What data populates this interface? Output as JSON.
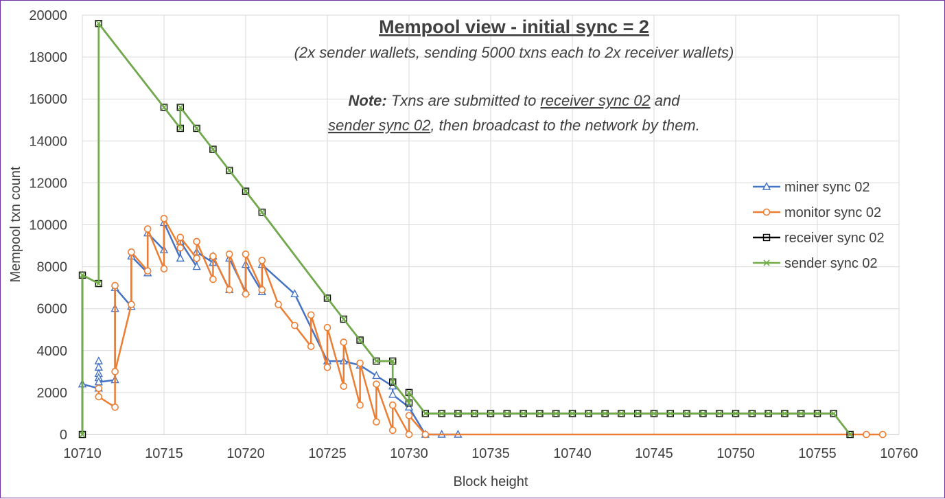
{
  "chart_data": {
    "type": "line",
    "title": "Mempool view - initial sync = 2",
    "subtitle": "(2x sender wallets, sending 5000 txns each to 2x receiver wallets)",
    "note": {
      "label": "Note:",
      "part1": " Txns are submitted to ",
      "link1": "receiver sync 02",
      "part2": " and",
      "link2": "sender sync 02",
      "part3": ", then broadcast to the network by them."
    },
    "xlabel": "Block height",
    "ylabel": "Mempool txn count",
    "xlim": [
      10710,
      10760
    ],
    "ylim": [
      0,
      20000
    ],
    "x_ticks": [
      10710,
      10715,
      10720,
      10725,
      10730,
      10735,
      10740,
      10745,
      10750,
      10755,
      10760
    ],
    "y_ticks": [
      0,
      2000,
      4000,
      6000,
      8000,
      10000,
      12000,
      14000,
      16000,
      18000,
      20000
    ],
    "grid": true,
    "legend_position": "right",
    "series": [
      {
        "name": "miner sync 02",
        "color": "#4472c4",
        "marker": "triangle",
        "points": [
          [
            10710,
            2400
          ],
          [
            10711,
            2200
          ],
          [
            10711,
            3500
          ],
          [
            10711,
            3200
          ],
          [
            10711,
            2900
          ],
          [
            10711,
            2700
          ],
          [
            10711,
            2500
          ],
          [
            10712,
            2600
          ],
          [
            10712,
            6000
          ],
          [
            10712,
            7000
          ],
          [
            10713,
            6100
          ],
          [
            10713,
            8500
          ],
          [
            10714,
            7700
          ],
          [
            10714,
            9600
          ],
          [
            10715,
            8800
          ],
          [
            10715,
            10100
          ],
          [
            10716,
            8400
          ],
          [
            10716,
            9200
          ],
          [
            10717,
            8000
          ],
          [
            10717,
            8700
          ],
          [
            10718,
            8200
          ],
          [
            10718,
            8500
          ],
          [
            10719,
            6900
          ],
          [
            10719,
            8400
          ],
          [
            10720,
            6800
          ],
          [
            10720,
            8100
          ],
          [
            10721,
            6800
          ],
          [
            10721,
            8100
          ],
          [
            10723,
            6700
          ],
          [
            10725,
            3500
          ],
          [
            10726,
            3500
          ],
          [
            10727,
            3300
          ],
          [
            10728,
            2800
          ],
          [
            10729,
            2300
          ],
          [
            10729,
            1900
          ],
          [
            10730,
            1300
          ],
          [
            10731,
            0
          ],
          [
            10732,
            0
          ],
          [
            10733,
            0
          ]
        ]
      },
      {
        "name": "monitor sync 02",
        "color": "#ed7d31",
        "marker": "circle",
        "points": [
          [
            10711,
            2200
          ],
          [
            10711,
            1800
          ],
          [
            10712,
            1300
          ],
          [
            10712,
            7100
          ],
          [
            10712,
            3000
          ],
          [
            10713,
            6200
          ],
          [
            10713,
            8700
          ],
          [
            10714,
            7800
          ],
          [
            10714,
            9800
          ],
          [
            10715,
            7900
          ],
          [
            10715,
            10300
          ],
          [
            10716,
            8900
          ],
          [
            10716,
            9400
          ],
          [
            10717,
            8400
          ],
          [
            10717,
            9200
          ],
          [
            10718,
            7400
          ],
          [
            10718,
            8500
          ],
          [
            10719,
            6900
          ],
          [
            10719,
            8600
          ],
          [
            10720,
            6700
          ],
          [
            10720,
            8600
          ],
          [
            10721,
            6900
          ],
          [
            10721,
            8300
          ],
          [
            10722,
            6200
          ],
          [
            10723,
            5200
          ],
          [
            10724,
            4200
          ],
          [
            10724,
            5700
          ],
          [
            10725,
            3200
          ],
          [
            10725,
            5100
          ],
          [
            10726,
            2300
          ],
          [
            10726,
            4400
          ],
          [
            10727,
            1400
          ],
          [
            10727,
            3400
          ],
          [
            10728,
            600
          ],
          [
            10728,
            2400
          ],
          [
            10729,
            200
          ],
          [
            10729,
            1400
          ],
          [
            10730,
            0
          ],
          [
            10730,
            900
          ],
          [
            10731,
            0
          ],
          [
            10758,
            0
          ],
          [
            10759,
            0
          ]
        ]
      },
      {
        "name": "receiver sync 02",
        "color": "#000000",
        "marker": "square",
        "points": [
          [
            10710,
            0
          ],
          [
            10710,
            7600
          ],
          [
            10711,
            7200
          ],
          [
            10711,
            19600
          ],
          [
            10715,
            15600
          ],
          [
            10716,
            14600
          ],
          [
            10716,
            15600
          ],
          [
            10717,
            14600
          ],
          [
            10718,
            13600
          ],
          [
            10719,
            12600
          ],
          [
            10720,
            11600
          ],
          [
            10721,
            10600
          ],
          [
            10725,
            6500
          ],
          [
            10726,
            5500
          ],
          [
            10727,
            4500
          ],
          [
            10728,
            3500
          ],
          [
            10729,
            3500
          ],
          [
            10729,
            2500
          ],
          [
            10730,
            1500
          ],
          [
            10730,
            2000
          ],
          [
            10731,
            1000
          ],
          [
            10732,
            1000
          ],
          [
            10733,
            1000
          ],
          [
            10734,
            1000
          ],
          [
            10735,
            1000
          ],
          [
            10736,
            1000
          ],
          [
            10737,
            1000
          ],
          [
            10738,
            1000
          ],
          [
            10739,
            1000
          ],
          [
            10740,
            1000
          ],
          [
            10741,
            1000
          ],
          [
            10742,
            1000
          ],
          [
            10743,
            1000
          ],
          [
            10744,
            1000
          ],
          [
            10745,
            1000
          ],
          [
            10746,
            1000
          ],
          [
            10747,
            1000
          ],
          [
            10748,
            1000
          ],
          [
            10749,
            1000
          ],
          [
            10750,
            1000
          ],
          [
            10751,
            1000
          ],
          [
            10752,
            1000
          ],
          [
            10753,
            1000
          ],
          [
            10754,
            1000
          ],
          [
            10755,
            1000
          ],
          [
            10756,
            1000
          ],
          [
            10757,
            0
          ]
        ]
      },
      {
        "name": "sender sync 02",
        "color": "#70ad47",
        "marker": "x",
        "points": [
          [
            10710,
            0
          ],
          [
            10710,
            7600
          ],
          [
            10711,
            7200
          ],
          [
            10711,
            19600
          ],
          [
            10715,
            15600
          ],
          [
            10716,
            14600
          ],
          [
            10716,
            15600
          ],
          [
            10717,
            14600
          ],
          [
            10718,
            13600
          ],
          [
            10719,
            12600
          ],
          [
            10720,
            11600
          ],
          [
            10721,
            10600
          ],
          [
            10725,
            6500
          ],
          [
            10726,
            5500
          ],
          [
            10727,
            4500
          ],
          [
            10728,
            3500
          ],
          [
            10729,
            3500
          ],
          [
            10729,
            2500
          ],
          [
            10730,
            1500
          ],
          [
            10730,
            2000
          ],
          [
            10731,
            1000
          ],
          [
            10732,
            1000
          ],
          [
            10733,
            1000
          ],
          [
            10734,
            1000
          ],
          [
            10735,
            1000
          ],
          [
            10736,
            1000
          ],
          [
            10737,
            1000
          ],
          [
            10738,
            1000
          ],
          [
            10739,
            1000
          ],
          [
            10740,
            1000
          ],
          [
            10741,
            1000
          ],
          [
            10742,
            1000
          ],
          [
            10743,
            1000
          ],
          [
            10744,
            1000
          ],
          [
            10745,
            1000
          ],
          [
            10746,
            1000
          ],
          [
            10747,
            1000
          ],
          [
            10748,
            1000
          ],
          [
            10749,
            1000
          ],
          [
            10750,
            1000
          ],
          [
            10751,
            1000
          ],
          [
            10752,
            1000
          ],
          [
            10753,
            1000
          ],
          [
            10754,
            1000
          ],
          [
            10755,
            1000
          ],
          [
            10756,
            1000
          ],
          [
            10757,
            0
          ]
        ]
      }
    ]
  }
}
